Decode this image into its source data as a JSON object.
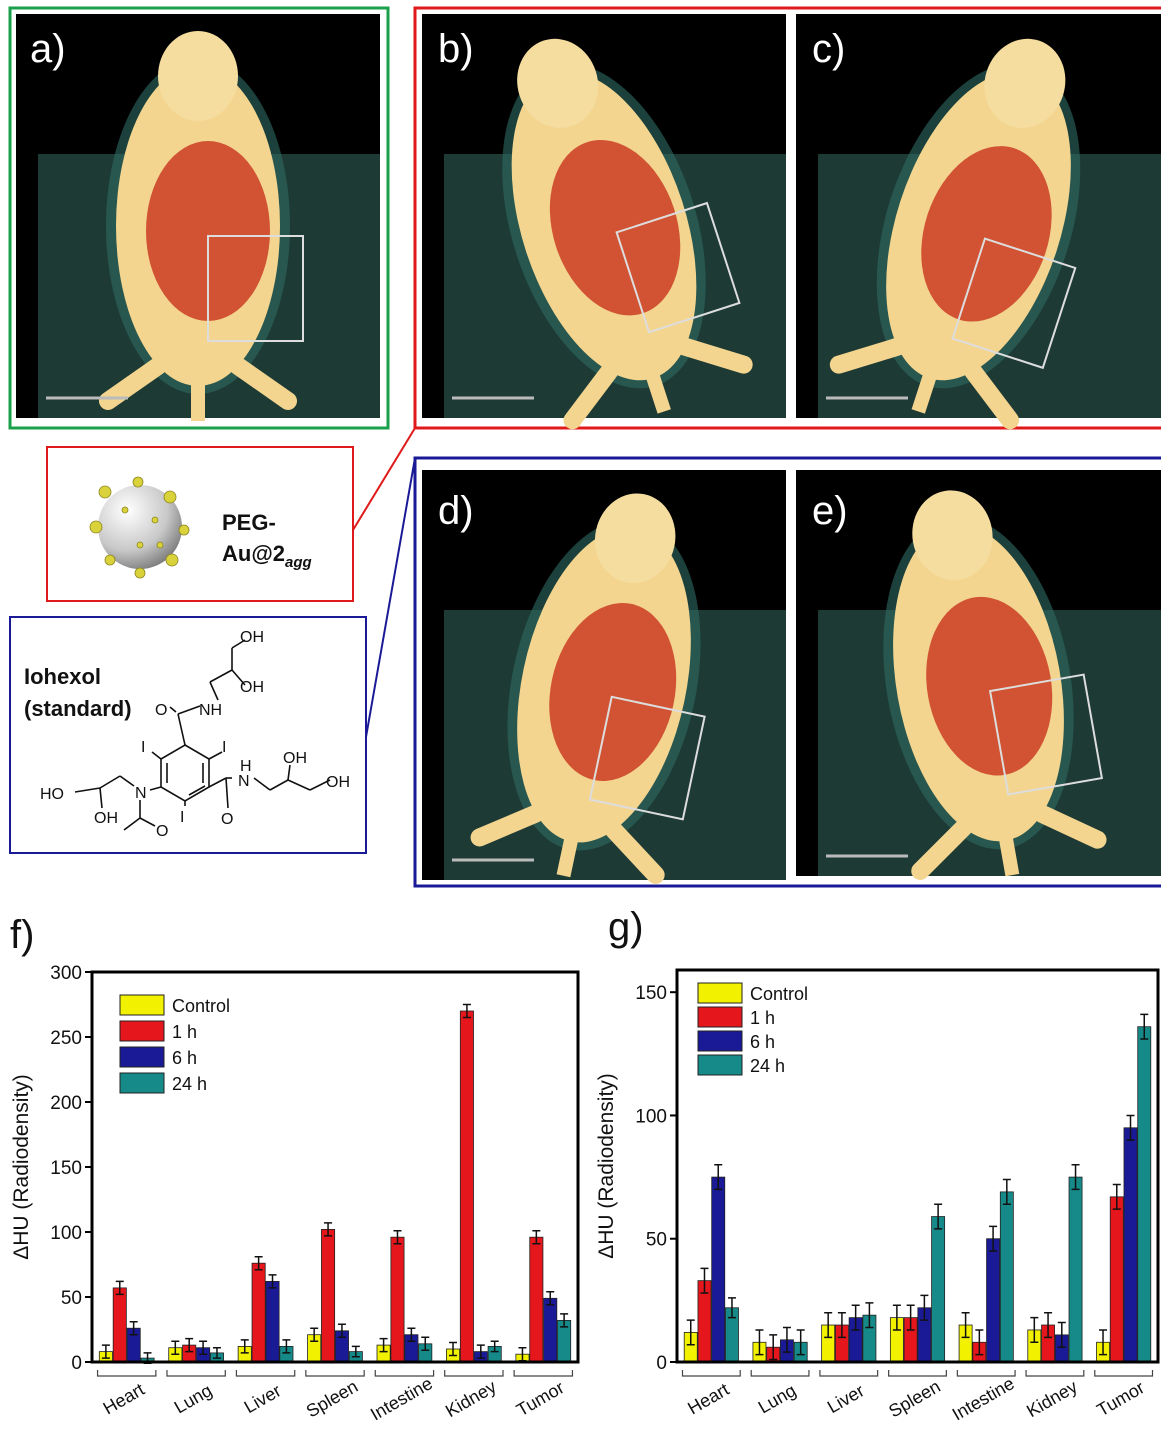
{
  "panels": {
    "a": "a)",
    "b": "b)",
    "c": "c)",
    "d": "d)",
    "e": "e)",
    "f": "f)",
    "g": "g)"
  },
  "nanoparticle": {
    "line1": "PEG-",
    "line2": "Au@2",
    "subscript": "agg"
  },
  "iohexol": {
    "name": "Iohexol",
    "note": "(standard)",
    "atoms": [
      "OH",
      "OH",
      "NH",
      "O",
      "I",
      "I",
      "H",
      "N",
      "OH",
      "OH",
      "HO",
      "N",
      "OH",
      "I",
      "O",
      "O"
    ]
  },
  "chart_data": [
    {
      "type": "bar",
      "y_label": "ΔHU (Radiodensity)",
      "categories": [
        "Heart",
        "Lung",
        "Liver",
        "Spleen",
        "Intestine",
        "Kidney",
        "Tumor"
      ],
      "series": [
        {
          "name": "Control",
          "color": "#f2f200",
          "values": [
            8,
            11,
            12,
            21,
            13,
            10,
            6
          ],
          "errors": [
            5,
            5,
            5,
            5,
            5,
            5,
            5
          ]
        },
        {
          "name": "1 h",
          "color": "#e5161c",
          "values": [
            57,
            13,
            76,
            102,
            96,
            270,
            96
          ],
          "errors": [
            5,
            5,
            5,
            5,
            5,
            5,
            5
          ]
        },
        {
          "name": "6 h",
          "color": "#1a1a96",
          "values": [
            26,
            11,
            62,
            24,
            21,
            8,
            49
          ],
          "errors": [
            5,
            5,
            5,
            5,
            5,
            5,
            5
          ]
        },
        {
          "name": "24 h",
          "color": "#168a88",
          "values": [
            3,
            7,
            12,
            8,
            14,
            12,
            32
          ],
          "errors": [
            4,
            4,
            5,
            4,
            5,
            4,
            5
          ]
        }
      ],
      "ylim": [
        0,
        300
      ],
      "yticks": [
        0,
        50,
        100,
        150,
        200,
        250,
        300
      ],
      "legend": "upper left"
    },
    {
      "type": "bar",
      "y_label": "ΔHU (Radiodensity)",
      "categories": [
        "Heart",
        "Lung",
        "Liver",
        "Spleen",
        "Intestine",
        "Kidney",
        "Tumor"
      ],
      "series": [
        {
          "name": "Control",
          "color": "#f2f200",
          "values": [
            12,
            8,
            15,
            18,
            15,
            13,
            8
          ],
          "errors": [
            5,
            5,
            5,
            5,
            5,
            5,
            5
          ]
        },
        {
          "name": "1 h",
          "color": "#e5161c",
          "values": [
            33,
            6,
            15,
            18,
            8,
            15,
            67
          ],
          "errors": [
            5,
            5,
            5,
            5,
            5,
            5,
            5
          ]
        },
        {
          "name": "6 h",
          "color": "#1a1a96",
          "values": [
            75,
            9,
            18,
            22,
            50,
            11,
            95
          ],
          "errors": [
            5,
            5,
            5,
            5,
            5,
            5,
            5
          ]
        },
        {
          "name": "24 h",
          "color": "#168a88",
          "values": [
            22,
            8,
            19,
            59,
            69,
            75,
            136
          ],
          "errors": [
            4,
            5,
            5,
            5,
            5,
            5,
            5
          ]
        }
      ],
      "ylim": [
        0,
        159
      ],
      "yticks": [
        0,
        50,
        100,
        150
      ],
      "legend": "upper left"
    }
  ]
}
